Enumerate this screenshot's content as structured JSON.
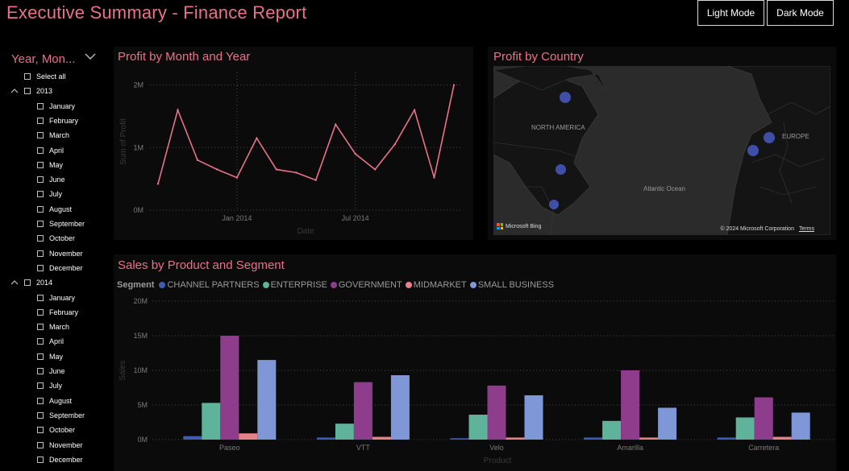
{
  "header": {
    "title": "Executive Summary - Finance Report",
    "light_mode_label": "Light Mode",
    "dark_mode_label": "Dark Mode"
  },
  "slicer": {
    "title": "Year, Mon...",
    "select_all": "Select all",
    "years": [
      {
        "year": "2013",
        "months": [
          "January",
          "February",
          "March",
          "April",
          "May",
          "June",
          "July",
          "August",
          "September",
          "October",
          "November",
          "December"
        ]
      },
      {
        "year": "2014",
        "months": [
          "January",
          "February",
          "March",
          "April",
          "May",
          "June",
          "July",
          "August",
          "September",
          "October",
          "November",
          "December"
        ]
      }
    ]
  },
  "colors": {
    "accent": "#e8728a",
    "line": "#e8728a",
    "channel_partners": "#3f5bb5",
    "enterprise": "#5fb39a",
    "government": "#8e3d8d",
    "midmarket": "#e8808a",
    "small_business": "#7f97d6"
  },
  "profit_chart_title": "Profit by Month and Year",
  "map_panel": {
    "title": "Profit by Country",
    "labels": {
      "north_america": "NORTH AMERICA",
      "atlantic": "Atlantic Ocean",
      "europe": "EUROPE"
    },
    "attribution": "Microsoft Bing",
    "copyright": "© 2024 Microsoft Corporation",
    "terms": "Terms"
  },
  "sales_chart_title": "Sales by Product and Segment",
  "chart_data": [
    {
      "type": "line",
      "title": "Profit by Month and Year",
      "xlabel": "Date",
      "ylabel": "Sum of Profit",
      "x_tick_labels": [
        "Jan 2014",
        "Jul 2014"
      ],
      "y_tick_labels": [
        "0M",
        "1M",
        "2M"
      ],
      "ylim": [
        0,
        2.2
      ],
      "x": [
        "2013-09",
        "2013-10",
        "2013-11",
        "2013-12",
        "2014-01",
        "2014-02",
        "2014-03",
        "2014-04",
        "2014-05",
        "2014-06",
        "2014-07",
        "2014-08",
        "2014-09",
        "2014-10",
        "2014-11",
        "2014-12"
      ],
      "series": [
        {
          "values": [
            0.42,
            1.6,
            0.8,
            0.65,
            0.52,
            1.15,
            0.65,
            0.6,
            0.48,
            1.37,
            0.9,
            0.65,
            1.05,
            1.6,
            0.52,
            2.0
          ]
        }
      ]
    },
    {
      "type": "bar",
      "title": "Sales by Product and Segment",
      "xlabel": "Product",
      "ylabel": "Sales",
      "legend_title": "Segment",
      "categories": [
        "Paseo",
        "VTT",
        "Velo",
        "Amarilla",
        "Carretera"
      ],
      "y_tick_labels": [
        "0M",
        "5M",
        "10M",
        "15M",
        "20M"
      ],
      "ylim": [
        0,
        20
      ],
      "series": [
        {
          "name": "CHANNEL PARTNERS",
          "values": [
            0.5,
            0.3,
            0.2,
            0.3,
            0.3
          ]
        },
        {
          "name": "ENTERPRISE",
          "values": [
            5.3,
            2.3,
            3.6,
            2.7,
            3.2
          ]
        },
        {
          "name": "GOVERNMENT",
          "values": [
            15.0,
            8.3,
            7.8,
            10.0,
            6.1
          ]
        },
        {
          "name": "MIDMARKET",
          "values": [
            0.9,
            0.4,
            0.3,
            0.3,
            0.4
          ]
        },
        {
          "name": "SMALL BUSINESS",
          "values": [
            11.5,
            9.3,
            6.4,
            4.6,
            3.9
          ]
        }
      ]
    }
  ]
}
